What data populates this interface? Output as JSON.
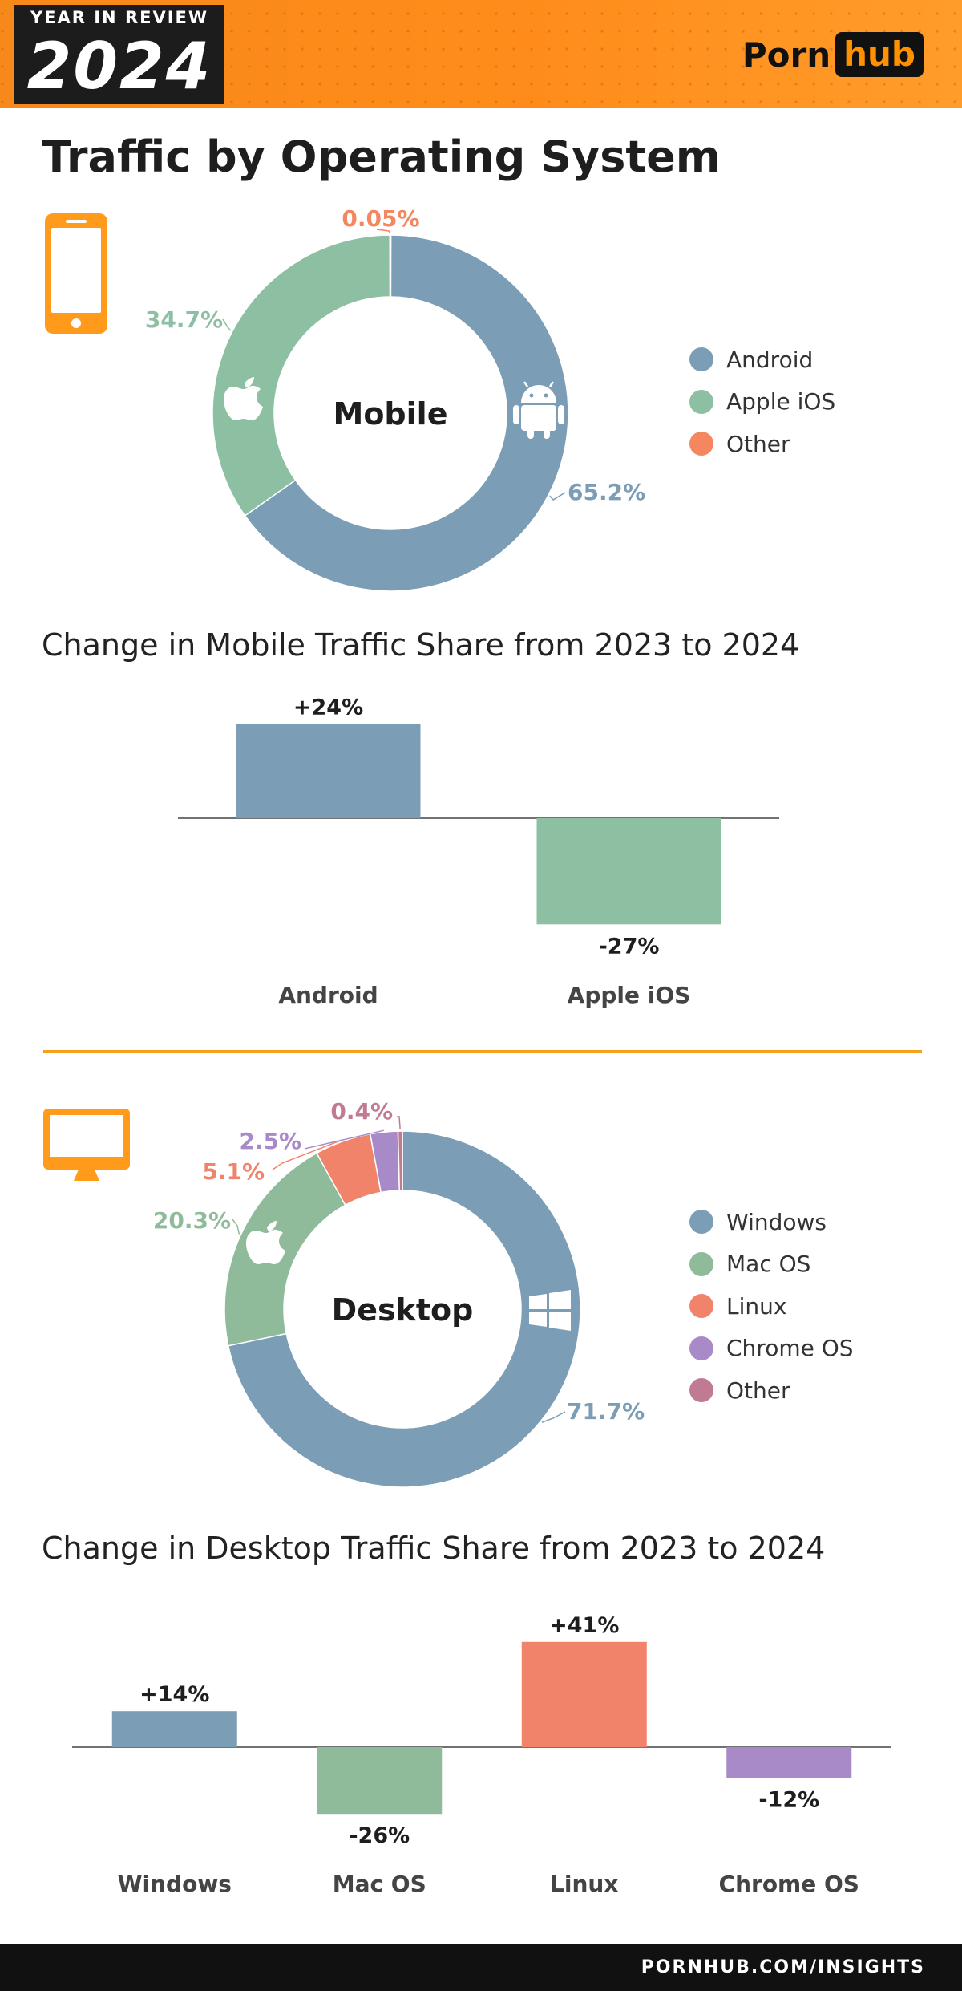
{
  "header": {
    "badge_top": "YEAR IN REVIEW",
    "badge_year": "2024",
    "brand_left": "Porn",
    "brand_right": "hub"
  },
  "title": "Traffic by Operating System",
  "colors": {
    "accent": "#ff8c1a",
    "android": "#7b9db6",
    "ios": "#8dbfa2",
    "mac": "#8fbb9b",
    "linux": "#f2836b",
    "chrome": "#a98ac9",
    "other_desktop": "#c17a93",
    "other_mobile": "#f48660",
    "windows": "#7b9db6"
  },
  "mobile_subtitle": "Change in Mobile Traffic Share from 2023 to 2024",
  "desktop_subtitle": "Change in Desktop Traffic Share from 2023 to 2024",
  "footer": "PORNHUB.COM/INSIGHTS",
  "icons": [
    "phone-icon",
    "apple-icon",
    "android-icon",
    "monitor-icon",
    "windows-icon"
  ],
  "chart_data": [
    {
      "type": "pie",
      "center_label": "Mobile",
      "categories": [
        "Android",
        "Apple iOS",
        "Other"
      ],
      "values": [
        65.2,
        34.7,
        0.05
      ],
      "value_labels": [
        "65.2%",
        "34.7%",
        "0.05%"
      ],
      "legend": [
        "Android",
        "Apple iOS",
        "Other"
      ],
      "legend_position": "right"
    },
    {
      "type": "bar",
      "title": "Change in Mobile Traffic Share from 2023 to 2024",
      "categories": [
        "Android",
        "Apple iOS"
      ],
      "values": [
        24,
        -27
      ],
      "value_labels": [
        "+24%",
        "-27%"
      ]
    },
    {
      "type": "pie",
      "center_label": "Desktop",
      "categories": [
        "Windows",
        "Mac OS",
        "Linux",
        "Chrome OS",
        "Other"
      ],
      "values": [
        71.7,
        20.3,
        5.1,
        2.5,
        0.4
      ],
      "value_labels": [
        "71.7%",
        "20.3%",
        "5.1%",
        "2.5%",
        "0.4%"
      ],
      "legend": [
        "Windows",
        "Mac OS",
        "Linux",
        "Chrome OS",
        "Other"
      ],
      "legend_position": "right"
    },
    {
      "type": "bar",
      "title": "Change in Desktop Traffic Share from 2023 to 2024",
      "categories": [
        "Windows",
        "Mac OS",
        "Linux",
        "Chrome OS"
      ],
      "values": [
        14,
        -26,
        41,
        -12
      ],
      "value_labels": [
        "+14%",
        "-26%",
        "+41%",
        "-12%"
      ]
    }
  ]
}
